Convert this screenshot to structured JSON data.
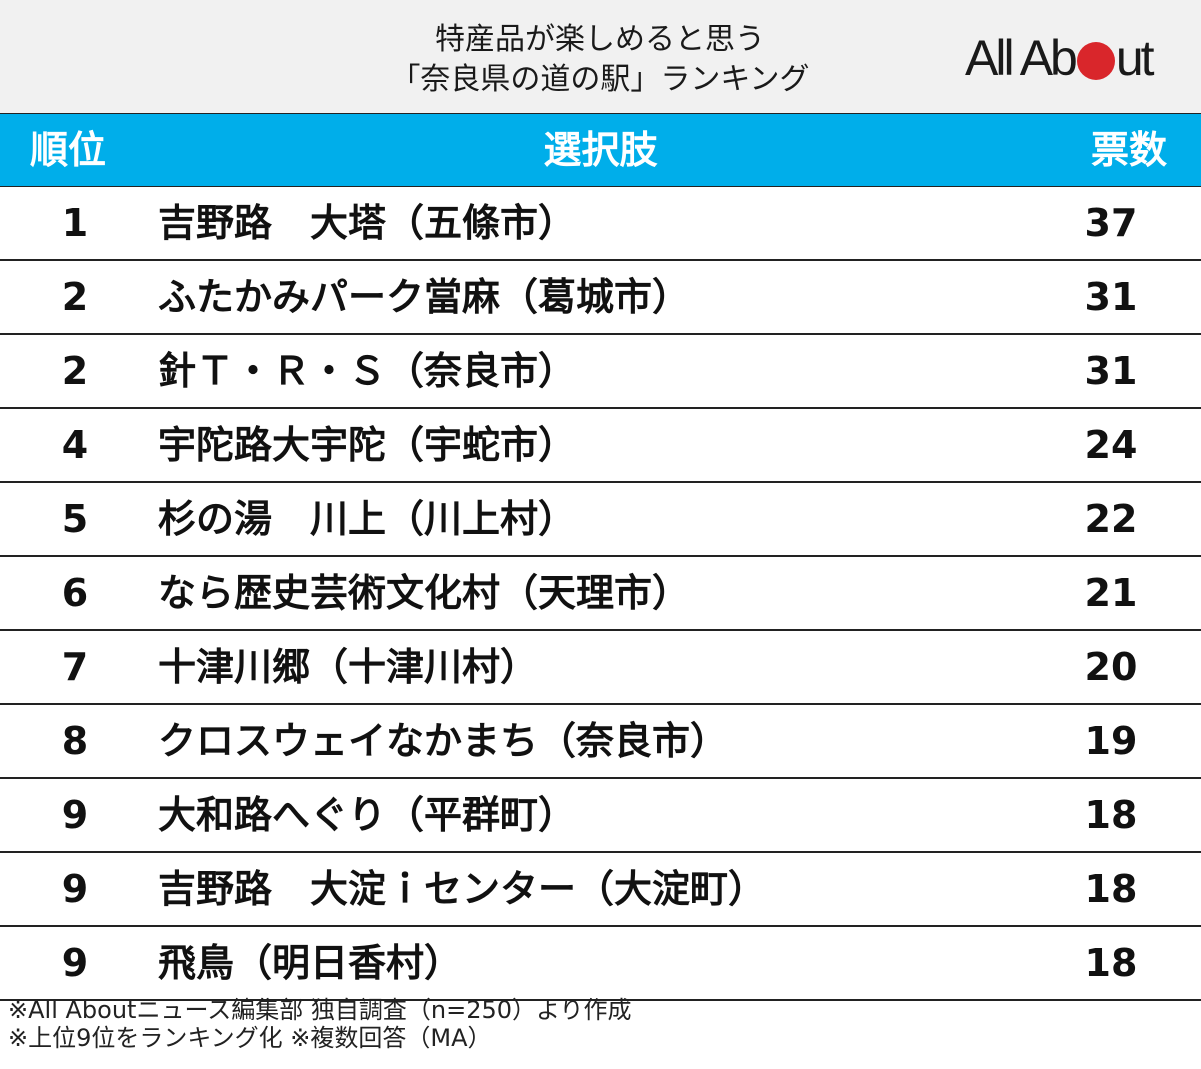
{
  "title": {
    "line1": "特産品が楽しめると思う",
    "line2": "「奈良県の道の駅」ランキング"
  },
  "logo": {
    "text_left": "All Ab",
    "text_right": "ut",
    "dot_color": "#d9262b"
  },
  "header": {
    "rank": "順位",
    "name": "選択肢",
    "votes": "票数",
    "bg_color": "#00aeea"
  },
  "rows": [
    {
      "rank": "1",
      "name": "吉野路　大塔（五條市）",
      "votes": "37"
    },
    {
      "rank": "2",
      "name": "ふたかみパーク當麻（葛城市）",
      "votes": "31"
    },
    {
      "rank": "2",
      "name": "針Ｔ・Ｒ・Ｓ（奈良市）",
      "votes": "31"
    },
    {
      "rank": "4",
      "name": "宇陀路大宇陀（宇蛇市）",
      "votes": "24"
    },
    {
      "rank": "5",
      "name": "杉の湯　川上（川上村）",
      "votes": "22"
    },
    {
      "rank": "6",
      "name": "なら歴史芸術文化村（天理市）",
      "votes": "21"
    },
    {
      "rank": "7",
      "name": "十津川郷（十津川村）",
      "votes": "20"
    },
    {
      "rank": "8",
      "name": "クロスウェイなかまち（奈良市）",
      "votes": "19"
    },
    {
      "rank": "9",
      "name": "大和路へぐり（平群町）",
      "votes": "18"
    },
    {
      "rank": "9",
      "name": "吉野路　大淀ｉセンター（大淀町）",
      "votes": "18"
    },
    {
      "rank": "9",
      "name": "飛鳥（明日香村）",
      "votes": "18"
    }
  ],
  "notes": {
    "line1": "※All Aboutニュース編集部 独自調査（n=250）より作成",
    "line2": "※上位9位をランキング化 ※複数回答（MA）"
  },
  "chart_data": {
    "type": "table",
    "title": "特産品が楽しめると思う「奈良県の道の駅」ランキング",
    "columns": [
      "順位",
      "選択肢",
      "票数"
    ],
    "categories": [
      "吉野路　大塔（五條市）",
      "ふたかみパーク當麻（葛城市）",
      "針Ｔ・Ｒ・Ｓ（奈良市）",
      "宇陀路大宇陀（宇蛇市）",
      "杉の湯　川上（川上村）",
      "なら歴史芸術文化村（天理市）",
      "十津川郷（十津川村）",
      "クロスウェイなかまち（奈良市）",
      "大和路へぐり（平群町）",
      "吉野路　大淀ｉセンター（大淀町）",
      "飛鳥（明日香村）"
    ],
    "ranks": [
      1,
      2,
      2,
      4,
      5,
      6,
      7,
      8,
      9,
      9,
      9
    ],
    "values": [
      37,
      31,
      31,
      24,
      22,
      21,
      20,
      19,
      18,
      18,
      18
    ],
    "n": 250,
    "notes": [
      "※All Aboutニュース編集部 独自調査（n=250）より作成",
      "※上位9位をランキング化 ※複数回答（MA）"
    ]
  }
}
